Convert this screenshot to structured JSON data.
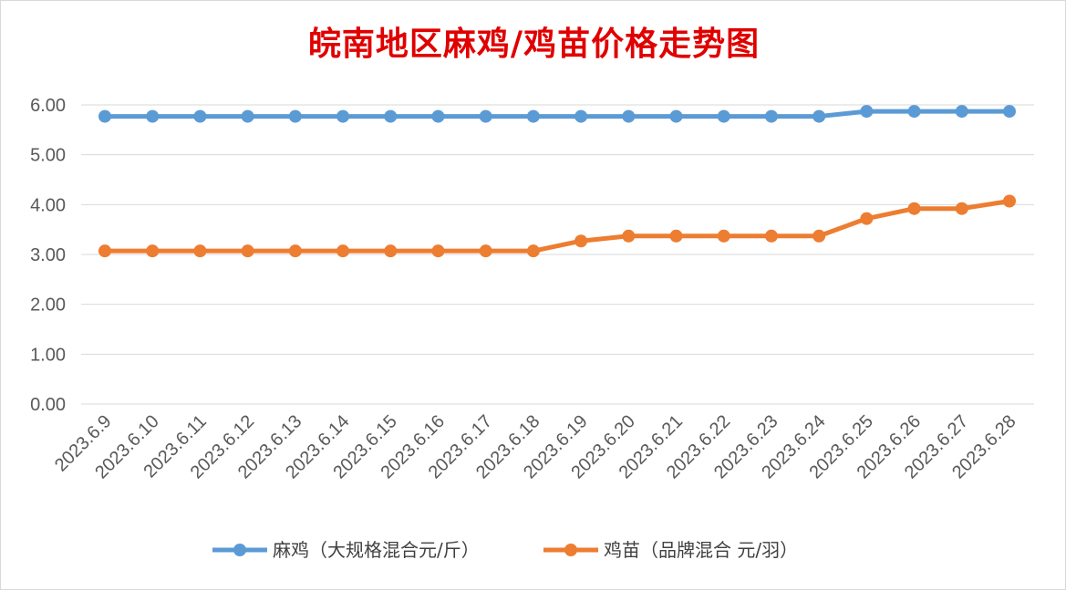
{
  "chart_data": {
    "type": "line",
    "title": "皖南地区麻鸡/鸡苗价格走势图",
    "xlabel": "",
    "ylabel": "",
    "categories": [
      "2023.6.9",
      "2023.6.10",
      "2023.6.11",
      "2023.6.12",
      "2023.6.13",
      "2023.6.14",
      "2023.6.15",
      "2023.6.16",
      "2023.6.17",
      "2023.6.18",
      "2023.6.19",
      "2023.6.20",
      "2023.6.21",
      "2023.6.22",
      "2023.6.23",
      "2023.6.24",
      "2023.6.25",
      "2023.6.26",
      "2023.6.27",
      "2023.6.28"
    ],
    "ylim": [
      0,
      6
    ],
    "yticks": [
      "0.00",
      "1.00",
      "2.00",
      "3.00",
      "4.00",
      "5.00",
      "6.00"
    ],
    "grid": true,
    "legend": "bottom",
    "series": [
      {
        "name": "麻鸡（大规格混合元/斤）",
        "color": "#5b9bd5",
        "values": [
          5.77,
          5.77,
          5.77,
          5.77,
          5.77,
          5.77,
          5.77,
          5.77,
          5.77,
          5.77,
          5.77,
          5.77,
          5.77,
          5.77,
          5.77,
          5.77,
          5.87,
          5.87,
          5.87,
          5.87
        ]
      },
      {
        "name": "鸡苗（品牌混合 元/羽）",
        "color": "#ed7d31",
        "values": [
          3.07,
          3.07,
          3.07,
          3.07,
          3.07,
          3.07,
          3.07,
          3.07,
          3.07,
          3.07,
          3.27,
          3.37,
          3.37,
          3.37,
          3.37,
          3.37,
          3.72,
          3.92,
          3.92,
          4.07
        ]
      }
    ]
  }
}
